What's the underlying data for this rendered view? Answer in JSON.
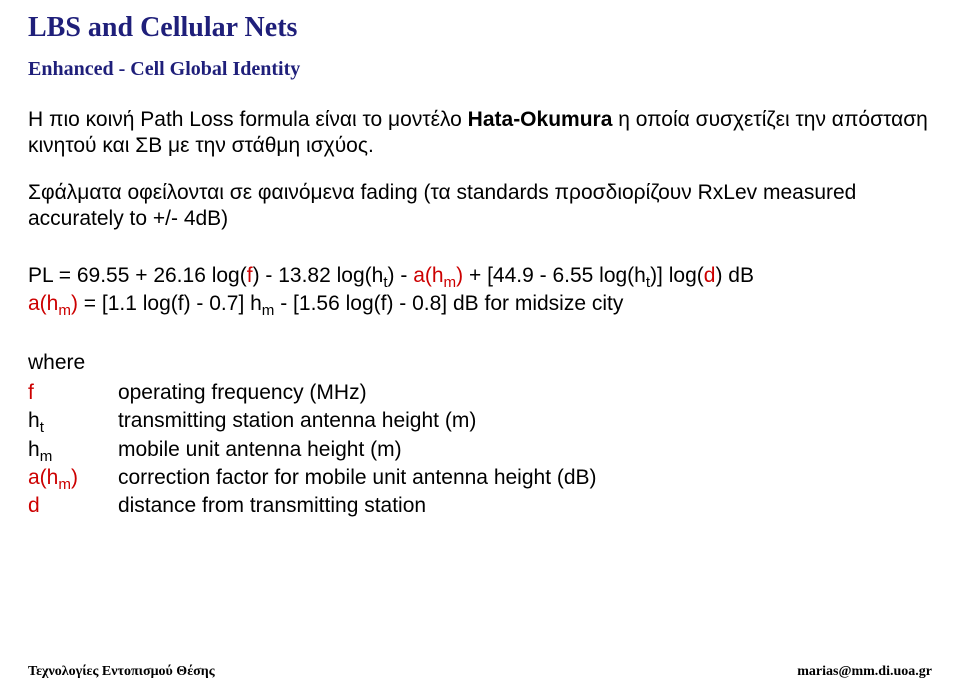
{
  "header": {
    "title": "LBS and Cellular Nets",
    "subtitle": "Enhanced - Cell Global Identity"
  },
  "body": {
    "para1_pre": "Η πιο κοινή Path Loss formula είναι το μοντέλο ",
    "para1_model": "Hata-Okumura",
    "para1_post": " η οποία συσχετίζει την απόσταση κινητού και ΣΒ με την στάθμη ισχύος.",
    "para2": "Σφάλματα οφείλονται σε φαινόμενα fading (τα standards προσδιορίζουν RxLev measured accurately to +/- 4dB)"
  },
  "formula": {
    "l1_a": "PL = 69.55 + 26.16 log(",
    "l1_f": "f",
    "l1_b": ") - 13.82 log(h",
    "l1_t": "t",
    "l1_c": ") - ",
    "l1_ahm": "a(h",
    "l1_m1": "m",
    "l1_close": ")",
    "l1_d": " + [44.9 - 6.55 log(h",
    "l1_t2": "t",
    "l1_e": ")] log(",
    "l1_dd": "d",
    "l1_f2": ") dB",
    "l2_ahm": "a(h",
    "l2_m": "m",
    "l2_close": ")",
    "l2_rest_a": " = [1.1 log(f) - 0.7] h",
    "l2_m2": "m",
    "l2_rest_b": " - [1.56 log(f) - 0.8] dB for midsize city"
  },
  "where": {
    "heading": "where",
    "defs": [
      {
        "sym_html": "f",
        "sym_color": "red",
        "txt": "operating frequency (MHz)"
      },
      {
        "sym_html": "h",
        "sub": "t",
        "txt": "transmitting station antenna height (m)"
      },
      {
        "sym_html": "h",
        "sub": "m",
        "txt": "mobile unit antenna height (m)"
      },
      {
        "sym_html": "a(h",
        "sub": "m",
        "sym_close": ")",
        "sym_color": "red",
        "txt": "correction factor for mobile unit antenna height (dB)"
      },
      {
        "sym_html": "d",
        "sym_color": "red",
        "txt": "distance from transmitting station"
      }
    ]
  },
  "footer": {
    "left": "Τεχνολογίες Εντοπισμού Θέσης",
    "right": "marias@mm.di.uoa.gr"
  }
}
